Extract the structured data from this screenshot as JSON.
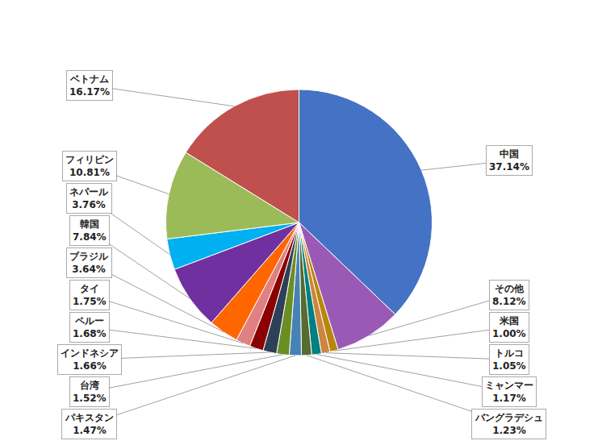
{
  "chart_data": {
    "type": "pie",
    "categories": [
      "中国",
      "その他",
      "米国",
      "トルコ",
      "ミャンマー",
      "バングラデシュ",
      "パキスタン",
      "台湾",
      "インドネシア",
      "ペルー",
      "タイ",
      "ブラジル",
      "韓国",
      "ネパール",
      "フィリピン",
      "ベトナム"
    ],
    "values": [
      37.14,
      8.12,
      1.0,
      1.05,
      1.17,
      1.23,
      1.47,
      1.52,
      1.66,
      1.68,
      1.75,
      3.64,
      7.84,
      3.76,
      10.81,
      16.17
    ],
    "value_labels": [
      "37.14%",
      "8.12%",
      "1.00%",
      "1.05%",
      "1.17%",
      "1.23%",
      "1.47%",
      "1.52%",
      "1.66%",
      "1.68%",
      "1.75%",
      "3.64%",
      "7.84%",
      "3.76%",
      "10.81%",
      "16.17%"
    ],
    "colors": [
      "#4472C4",
      "#9B59B6",
      "#B8860B",
      "#CD853F",
      "#008080",
      "#556B2F",
      "#4682B4",
      "#6B8E23",
      "#2E4057",
      "#8B0000",
      "#E08080",
      "#FF6600",
      "#7030A0",
      "#00B0F0",
      "#9BBB59",
      "#C0504D"
    ],
    "data_labels": true
  }
}
